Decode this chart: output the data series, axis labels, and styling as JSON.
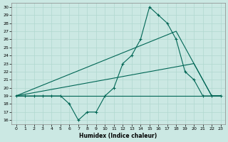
{
  "xlabel": "Humidex (Indice chaleur)",
  "xlim": [
    -0.5,
    23.5
  ],
  "ylim": [
    15.5,
    30.5
  ],
  "yticks": [
    16,
    17,
    18,
    19,
    20,
    21,
    22,
    23,
    24,
    25,
    26,
    27,
    28,
    29,
    30
  ],
  "xticks": [
    0,
    1,
    2,
    3,
    4,
    5,
    6,
    7,
    8,
    9,
    10,
    11,
    12,
    13,
    14,
    15,
    16,
    17,
    18,
    19,
    20,
    21,
    22,
    23
  ],
  "bg_color": "#cbe8e3",
  "grid_color": "#b0d8d0",
  "line_color": "#006655",
  "line1_x": [
    0,
    1,
    2,
    3,
    4,
    5,
    6,
    7,
    8,
    9,
    10,
    11,
    12,
    13,
    14,
    15,
    16,
    17,
    18,
    19,
    20,
    21,
    22,
    23
  ],
  "line1_y": [
    19,
    19,
    19,
    19,
    19,
    19,
    18,
    16,
    17,
    17,
    19,
    20,
    23,
    24,
    26,
    30,
    29,
    28,
    26,
    22,
    21,
    19,
    19,
    19
  ],
  "line2_x": [
    0,
    1,
    2,
    3,
    4,
    5,
    6,
    7,
    8,
    9,
    10,
    11,
    12,
    13,
    14,
    15,
    16,
    17,
    18,
    19,
    20,
    21,
    22,
    23
  ],
  "line2_y": [
    19,
    19,
    19,
    19,
    19,
    19,
    19,
    19,
    19,
    19,
    19,
    19,
    19,
    19,
    19,
    19,
    19,
    19,
    19,
    19,
    19,
    19,
    19,
    19
  ],
  "line3_x": [
    0,
    18,
    20,
    22,
    23
  ],
  "line3_y": [
    19,
    27,
    23,
    19,
    19
  ],
  "line4_x": [
    0,
    20,
    22,
    23
  ],
  "line4_y": [
    19,
    23,
    19,
    19
  ]
}
